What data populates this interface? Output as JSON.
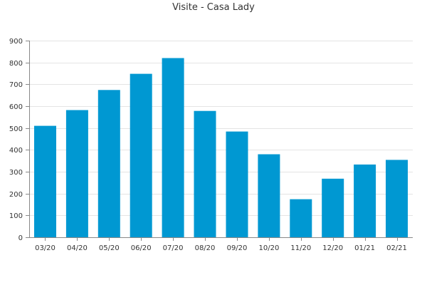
{
  "chart_data": {
    "type": "bar",
    "title": "Visite - Casa Lady",
    "xlabel": "",
    "ylabel": "",
    "categories": [
      "03/20",
      "04/20",
      "05/20",
      "06/20",
      "07/20",
      "08/20",
      "09/20",
      "10/20",
      "11/20",
      "12/20",
      "01/21",
      "02/21"
    ],
    "values": [
      510,
      582,
      674,
      748,
      820,
      578,
      484,
      380,
      174,
      268,
      333,
      354
    ],
    "ylim": [
      0,
      900
    ],
    "yticks": [
      0,
      100,
      200,
      300,
      400,
      500,
      600,
      700,
      800,
      900
    ],
    "grid": true,
    "legend": "none",
    "bar_color": "#0098d2",
    "grid_color": "#e4e4e4",
    "axis_color": "#888888"
  }
}
